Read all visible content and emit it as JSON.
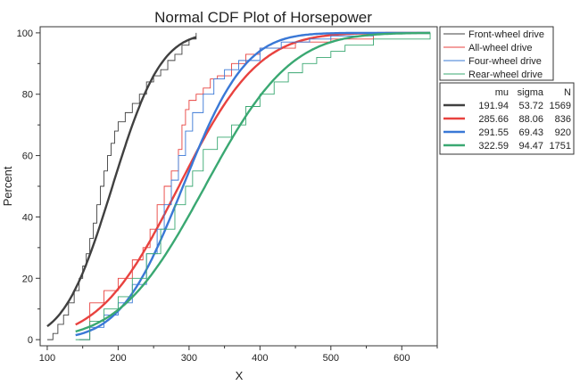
{
  "chart_data": {
    "type": "line",
    "title": "Normal CDF Plot of Horsepower",
    "xlabel": "X",
    "ylabel": "Percent",
    "xlim": [
      90,
      650
    ],
    "ylim": [
      -2,
      102
    ],
    "xticks": [
      100,
      200,
      300,
      400,
      500,
      600
    ],
    "yticks": [
      0,
      20,
      40,
      60,
      80,
      100
    ],
    "grid": false,
    "legend_position": "top-right",
    "legend_title": "",
    "stats_header": [
      "mu",
      "sigma",
      "N"
    ],
    "series": [
      {
        "name": "Front-wheel drive",
        "color": "#404040",
        "mu": 191.94,
        "sigma": 53.72,
        "N": 1569,
        "mu_label": "191.94",
        "sigma_label": "53.72",
        "N_label": "1569",
        "fit_range": [
          100,
          310
        ],
        "empirical": [
          [
            100,
            0
          ],
          [
            108,
            2
          ],
          [
            115,
            5
          ],
          [
            123,
            8
          ],
          [
            130,
            12
          ],
          [
            138,
            16
          ],
          [
            145,
            20
          ],
          [
            150,
            24
          ],
          [
            155,
            28
          ],
          [
            160,
            33
          ],
          [
            165,
            38
          ],
          [
            170,
            44
          ],
          [
            175,
            50
          ],
          [
            180,
            55
          ],
          [
            185,
            60
          ],
          [
            190,
            64
          ],
          [
            195,
            68
          ],
          [
            200,
            71
          ],
          [
            210,
            74
          ],
          [
            220,
            77
          ],
          [
            230,
            80
          ],
          [
            240,
            84
          ],
          [
            250,
            86
          ],
          [
            260,
            88
          ],
          [
            270,
            91
          ],
          [
            280,
            93
          ],
          [
            290,
            96
          ],
          [
            300,
            98
          ],
          [
            310,
            100
          ]
        ]
      },
      {
        "name": "All-wheel drive",
        "color": "#e8423f",
        "mu": 285.66,
        "sigma": 88.06,
        "N": 836,
        "mu_label": "285.66",
        "sigma_label": "88.06",
        "N_label": "836",
        "fit_range": [
          140,
          640
        ],
        "empirical": [
          [
            145,
            0
          ],
          [
            160,
            12
          ],
          [
            180,
            16
          ],
          [
            200,
            20
          ],
          [
            220,
            26
          ],
          [
            235,
            30
          ],
          [
            245,
            36
          ],
          [
            255,
            44
          ],
          [
            265,
            50
          ],
          [
            275,
            55
          ],
          [
            285,
            62
          ],
          [
            290,
            70
          ],
          [
            295,
            75
          ],
          [
            300,
            78
          ],
          [
            310,
            80
          ],
          [
            320,
            82
          ],
          [
            330,
            85
          ],
          [
            340,
            86
          ],
          [
            360,
            90
          ],
          [
            380,
            93
          ],
          [
            400,
            95
          ],
          [
            450,
            97
          ],
          [
            500,
            98
          ],
          [
            560,
            100
          ]
        ]
      },
      {
        "name": "Four-wheel drive",
        "color": "#3a78d6",
        "mu": 291.55,
        "sigma": 69.43,
        "N": 920,
        "mu_label": "291.55",
        "sigma_label": "69.43",
        "N_label": "920",
        "fit_range": [
          140,
          640
        ],
        "empirical": [
          [
            145,
            0
          ],
          [
            160,
            4
          ],
          [
            180,
            8
          ],
          [
            200,
            12
          ],
          [
            220,
            18
          ],
          [
            240,
            28
          ],
          [
            255,
            36
          ],
          [
            265,
            44
          ],
          [
            275,
            52
          ],
          [
            285,
            60
          ],
          [
            295,
            68
          ],
          [
            305,
            74
          ],
          [
            320,
            80
          ],
          [
            335,
            85
          ],
          [
            350,
            88
          ],
          [
            370,
            91
          ],
          [
            400,
            95
          ],
          [
            430,
            97
          ],
          [
            470,
            98
          ],
          [
            500,
            99
          ],
          [
            560,
            100
          ]
        ]
      },
      {
        "name": "Rear-wheel drive",
        "color": "#3aa872",
        "mu": 322.59,
        "sigma": 94.47,
        "N": 1751,
        "mu_label": "322.59",
        "sigma_label": "94.47",
        "N_label": "1751",
        "fit_range": [
          140,
          640
        ],
        "empirical": [
          [
            140,
            0
          ],
          [
            160,
            6
          ],
          [
            180,
            10
          ],
          [
            200,
            14
          ],
          [
            220,
            20
          ],
          [
            240,
            28
          ],
          [
            260,
            36
          ],
          [
            280,
            44
          ],
          [
            295,
            50
          ],
          [
            305,
            55
          ],
          [
            320,
            62
          ],
          [
            340,
            66
          ],
          [
            360,
            70
          ],
          [
            380,
            76
          ],
          [
            400,
            80
          ],
          [
            420,
            84
          ],
          [
            440,
            87
          ],
          [
            460,
            90
          ],
          [
            480,
            92
          ],
          [
            500,
            94
          ],
          [
            520,
            96
          ],
          [
            560,
            98
          ],
          [
            640,
            100
          ]
        ]
      }
    ]
  }
}
